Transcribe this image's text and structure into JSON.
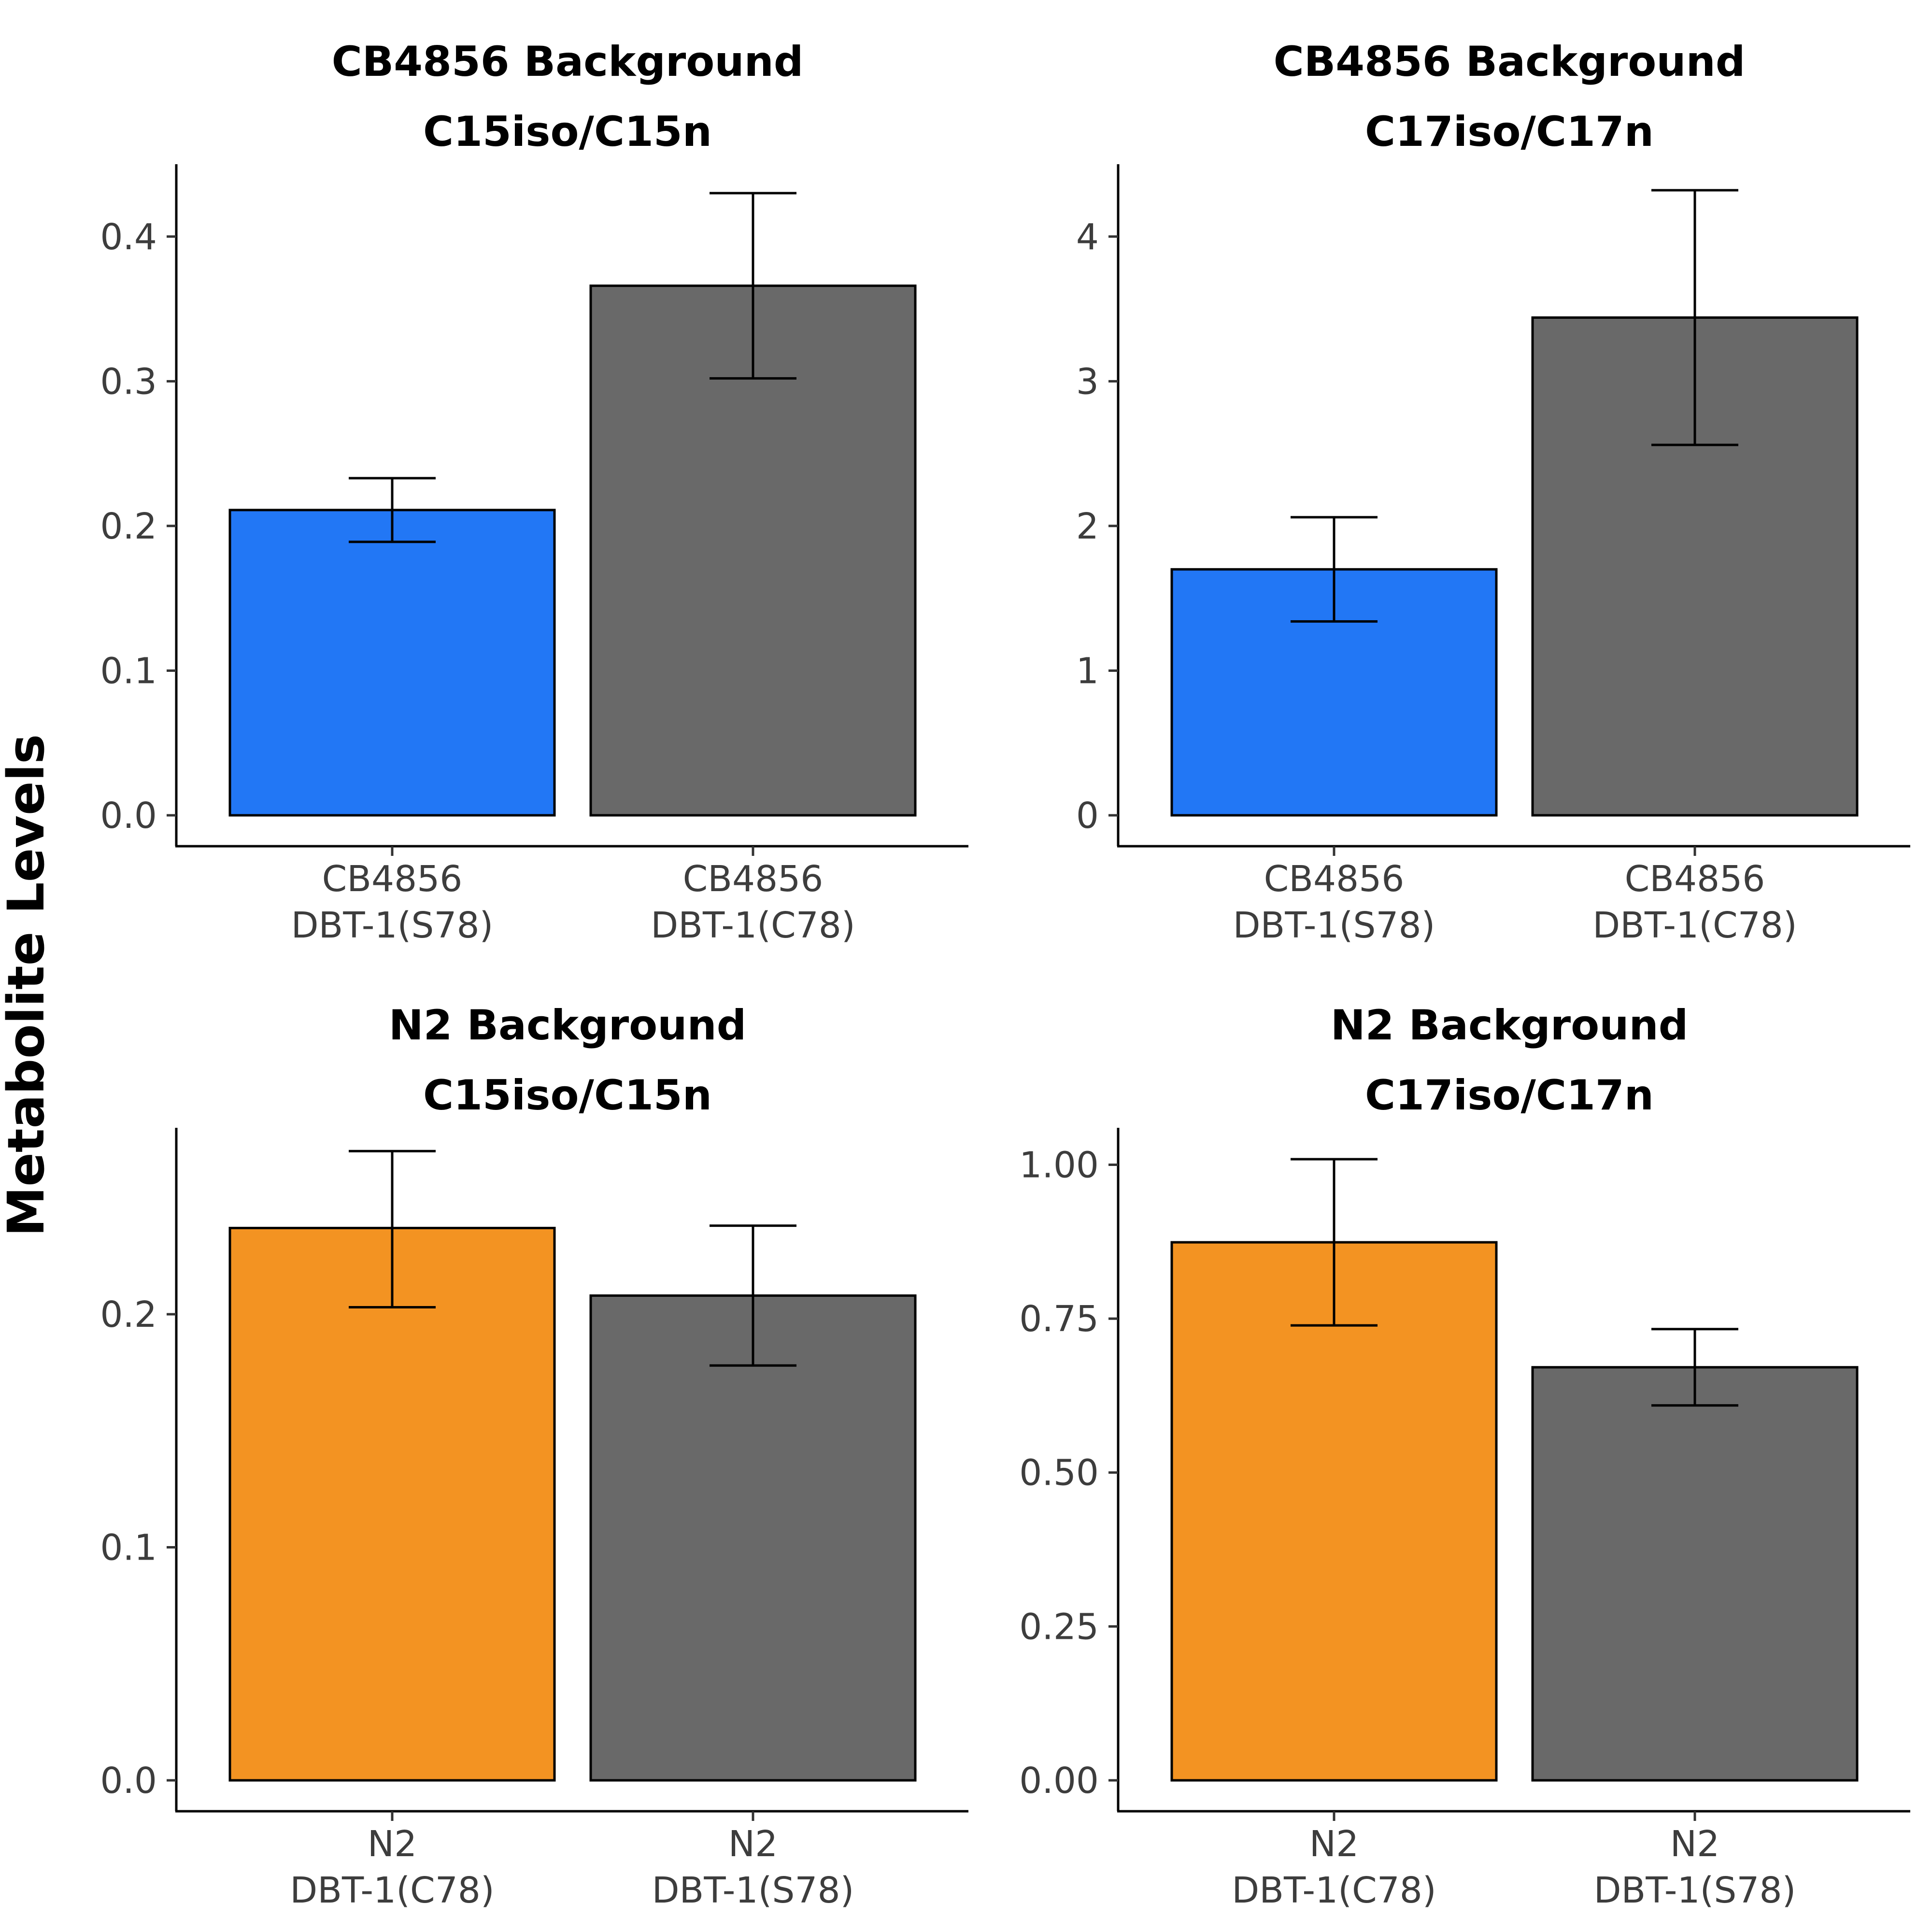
{
  "figure": {
    "ylabel": "Metabolite Levels"
  },
  "chart_data": [
    {
      "type": "bar",
      "title": "CB4856 Background",
      "subtitle": "C15iso/C15n",
      "categories": [
        [
          "CB4856",
          "DBT-1(S78)"
        ],
        [
          "CB4856",
          "DBT-1(C78)"
        ]
      ],
      "values": [
        0.211,
        0.366
      ],
      "error_low": [
        0.189,
        0.302
      ],
      "error_high": [
        0.233,
        0.43
      ],
      "colors": [
        "#2277F5",
        "#696969"
      ],
      "ylim": [
        0,
        0.45
      ],
      "yticks": [
        0,
        0.1,
        0.2,
        0.3,
        0.4
      ],
      "ytick_labels": [
        "0.0",
        "0.1",
        "0.2",
        "0.3",
        "0.4"
      ],
      "ylabel": "Metabolite Levels",
      "xlabel": ""
    },
    {
      "type": "bar",
      "title": "CB4856 Background",
      "subtitle": "C17iso/C17n",
      "categories": [
        [
          "CB4856",
          "DBT-1(S78)"
        ],
        [
          "CB4856",
          "DBT-1(C78)"
        ]
      ],
      "values": [
        1.7,
        3.44
      ],
      "error_low": [
        1.34,
        2.56
      ],
      "error_high": [
        2.06,
        4.32
      ],
      "colors": [
        "#2277F5",
        "#696969"
      ],
      "ylim": [
        0,
        4.5
      ],
      "yticks": [
        0,
        1,
        2,
        3,
        4
      ],
      "ytick_labels": [
        "0",
        "1",
        "2",
        "3",
        "4"
      ],
      "ylabel": "Metabolite Levels",
      "xlabel": ""
    },
    {
      "type": "bar",
      "title": "N2 Background",
      "subtitle": "C15iso/C15n",
      "categories": [
        [
          "N2",
          "DBT-1(C78)"
        ],
        [
          "N2",
          "DBT-1(S78)"
        ]
      ],
      "values": [
        0.237,
        0.208
      ],
      "error_low": [
        0.203,
        0.178
      ],
      "error_high": [
        0.27,
        0.238
      ],
      "colors": [
        "#F39322",
        "#696969"
      ],
      "ylim": [
        0,
        0.28
      ],
      "yticks": [
        0,
        0.1,
        0.2
      ],
      "ytick_labels": [
        "0.0",
        "0.1",
        "0.2"
      ],
      "ylabel": "Metabolite Levels",
      "xlabel": ""
    },
    {
      "type": "bar",
      "title": "N2 Background",
      "subtitle": "C17iso/C17n",
      "categories": [
        [
          "N2",
          "DBT-1(C78)"
        ],
        [
          "N2",
          "DBT-1(S78)"
        ]
      ],
      "values": [
        0.874,
        0.671
      ],
      "error_low": [
        0.739,
        0.609
      ],
      "error_high": [
        1.009,
        0.733
      ],
      "colors": [
        "#F39322",
        "#696969"
      ],
      "ylim": [
        0,
        1.06
      ],
      "yticks": [
        0,
        0.25,
        0.5,
        0.75,
        1.0
      ],
      "ytick_labels": [
        "0.00",
        "0.25",
        "0.50",
        "0.75",
        "1.00"
      ],
      "ylabel": "Metabolite Levels",
      "xlabel": ""
    }
  ]
}
